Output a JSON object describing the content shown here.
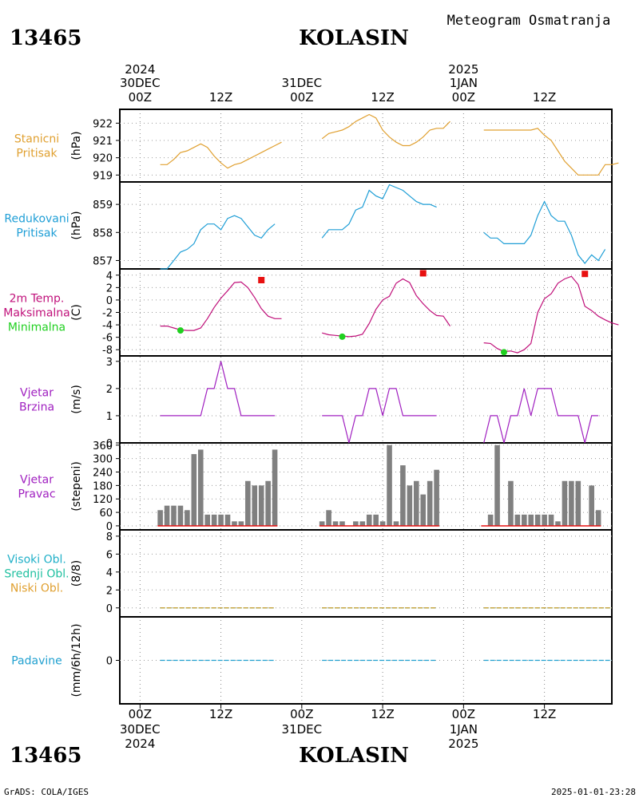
{
  "header": {
    "station_id": "13465",
    "station_name": "KOLASIN",
    "product": "Meteogram Osmatranja"
  },
  "footer": {
    "station_id": "13465",
    "station_name": "KOLASIN",
    "credit": "GrADS: COLA/IGES",
    "timestamp": "2025-01-01-23:28"
  },
  "time_axis": {
    "ticks": [
      {
        "hour": 0,
        "label": "00Z",
        "day": "30DEC",
        "year": "2024"
      },
      {
        "hour": 12,
        "label": "12Z"
      },
      {
        "hour": 24,
        "label": "00Z",
        "day": "31DEC"
      },
      {
        "hour": 36,
        "label": "12Z"
      },
      {
        "hour": 48,
        "label": "00Z",
        "day": "1JAN",
        "year": "2025"
      },
      {
        "hour": 60,
        "label": "12Z"
      }
    ],
    "range_hours": [
      -3,
      70
    ]
  },
  "colors": {
    "station_pressure": "#e0a030",
    "reduced_pressure": "#1e9ed6",
    "temperature": "#c0107a",
    "max_temp": "#e81010",
    "min_temp": "#20d020",
    "wind": "#a020c0",
    "bars": "#808080",
    "high_cloud": "#20b0c8",
    "mid_cloud": "#20c0a0",
    "low_cloud": "#e0a030",
    "precip": "#20a0d0"
  },
  "chart_data": [
    {
      "type": "line",
      "panel": "station_pressure",
      "label_lines": [
        "Stanicni",
        "Pritisak"
      ],
      "ylabel": "(hPa)",
      "ylim": [
        918.6,
        922.8
      ],
      "yticks": [
        919,
        920,
        921,
        922
      ],
      "series": [
        {
          "segments": [
            {
              "x0": 3,
              "values": [
                919.6,
                919.6,
                919.9,
                920.3,
                920.4,
                920.6,
                920.8,
                920.6,
                920.1,
                919.7,
                919.4,
                919.6,
                919.7,
                919.9,
                920.1,
                920.3,
                920.5,
                920.7,
                920.9
              ]
            },
            {
              "x0": 27,
              "values": [
                921.1,
                921.4,
                921.5,
                921.6,
                921.8,
                922.1,
                922.3,
                922.5,
                922.3,
                921.6,
                921.2,
                920.9,
                920.7,
                920.7,
                920.9,
                921.2,
                921.6,
                921.7,
                921.7,
                922.1
              ]
            },
            {
              "x0": 51,
              "values": [
                921.6,
                921.6,
                921.6,
                921.6,
                921.6,
                921.6,
                921.6,
                921.6,
                921.7,
                921.3,
                921.0,
                920.4,
                919.8,
                919.4,
                919.0,
                919.0,
                919.0,
                919.0,
                919.6,
                919.6,
                919.7
              ]
            }
          ]
        }
      ]
    },
    {
      "type": "line",
      "panel": "reduced_pressure",
      "label_lines": [
        "Redukovani",
        "Pritisak"
      ],
      "ylabel": "(hPa)",
      "ylim": [
        856.7,
        859.8
      ],
      "yticks": [
        857,
        858,
        859
      ],
      "series": [
        {
          "segments": [
            {
              "x0": 3,
              "values": [
                856.7,
                856.7,
                857.0,
                857.3,
                857.4,
                857.6,
                858.1,
                858.3,
                858.3,
                858.1,
                858.5,
                858.6,
                858.5,
                858.2,
                857.9,
                857.8,
                858.1,
                858.3
              ]
            },
            {
              "x0": 27,
              "values": [
                857.8,
                858.1,
                858.1,
                858.1,
                858.3,
                858.8,
                858.9,
                859.5,
                859.3,
                859.2,
                859.7,
                859.6,
                859.5,
                859.3,
                859.1,
                859.0,
                859.0,
                858.9
              ]
            },
            {
              "x0": 51,
              "values": [
                858.0,
                857.8,
                857.8,
                857.6,
                857.6,
                857.6,
                857.6,
                857.9,
                858.6,
                859.1,
                858.6,
                858.4,
                858.4,
                857.9,
                857.2,
                856.9,
                857.2,
                857.0,
                857.4
              ]
            }
          ]
        }
      ]
    },
    {
      "type": "line",
      "panel": "temperature",
      "label_lines": [
        "2m Temp.",
        "Maksimalna",
        "Minimalna"
      ],
      "ylabel": "(C)",
      "ylim": [
        -9,
        5
      ],
      "yticks": [
        -8,
        -6,
        -4,
        -2,
        0,
        2,
        4
      ],
      "series": [
        {
          "segments": [
            {
              "x0": 3,
              "values": [
                -4.2,
                -4.2,
                -4.5,
                -4.8,
                -4.9,
                -4.9,
                -4.5,
                -3.0,
                -1.2,
                0.3,
                1.5,
                2.8,
                2.9,
                2.0,
                0.4,
                -1.4,
                -2.6,
                -3.0,
                -3.0
              ]
            },
            {
              "x0": 27,
              "values": [
                -5.3,
                -5.6,
                -5.7,
                -5.8,
                -5.9,
                -5.8,
                -5.5,
                -3.8,
                -1.5,
                0.0,
                0.6,
                2.7,
                3.4,
                2.8,
                0.7,
                -0.6,
                -1.7,
                -2.5,
                -2.6,
                -4.2
              ]
            },
            {
              "x0": 51,
              "values": [
                -6.9,
                -7.0,
                -7.8,
                -8.3,
                -8.2,
                -8.5,
                -8.0,
                -7.0,
                -2.0,
                0.2,
                1.0,
                2.7,
                3.4,
                3.8,
                2.5,
                -1.0,
                -1.7,
                -2.6,
                -3.2,
                -3.7,
                -4.0
              ]
            }
          ]
        },
        {
          "name": "Maksimalna",
          "marker": "square",
          "points": [
            [
              18,
              3.2
            ],
            [
              42,
              4.3
            ],
            [
              66,
              4.2
            ]
          ]
        },
        {
          "name": "Minimalna",
          "marker": "circle",
          "points": [
            [
              6,
              -4.9
            ],
            [
              30,
              -5.9
            ],
            [
              54,
              -8.4
            ]
          ]
        }
      ]
    },
    {
      "type": "line",
      "panel": "wind_speed",
      "label_lines": [
        "Vjetar",
        "Brzina"
      ],
      "ylabel": "(m/s)",
      "ylim": [
        0,
        3.2
      ],
      "yticks": [
        0,
        1,
        2,
        3
      ],
      "series": [
        {
          "segments": [
            {
              "x0": 3,
              "values": [
                1,
                1,
                1,
                1,
                1,
                1,
                1,
                2,
                2,
                3,
                2,
                2,
                1,
                1,
                1,
                1,
                1,
                1
              ]
            },
            {
              "x0": 27,
              "values": [
                1,
                1,
                1,
                1,
                0,
                1,
                1,
                2,
                2,
                1,
                2,
                2,
                1,
                1,
                1,
                1,
                1,
                1
              ]
            },
            {
              "x0": 51,
              "values": [
                0,
                1,
                1,
                0,
                1,
                1,
                2,
                1,
                2,
                2,
                2,
                1,
                1,
                1,
                1,
                0,
                1,
                1
              ]
            }
          ]
        }
      ]
    },
    {
      "type": "bar",
      "panel": "wind_direction",
      "label_lines": [
        "Vjetar",
        "Pravac"
      ],
      "ylabel": "(stepeni)",
      "ylim": [
        -18,
        370
      ],
      "yticks": [
        0,
        60,
        120,
        180,
        240,
        300,
        360
      ],
      "series": [
        {
          "segments": [
            {
              "x0": 3,
              "values": [
                70,
                90,
                90,
                90,
                70,
                320,
                340,
                50,
                50,
                50,
                50,
                20,
                20,
                200,
                180,
                180,
                200,
                340
              ]
            },
            {
              "x0": 27,
              "values": [
                20,
                70,
                20,
                20,
                0,
                20,
                20,
                50,
                50,
                20,
                360,
                20,
                270,
                180,
                200,
                140,
                200,
                250
              ]
            },
            {
              "x0": 51,
              "values": [
                0,
                50,
                360,
                0,
                200,
                50,
                50,
                50,
                50,
                50,
                50,
                20,
                200,
                200,
                200,
                0,
                180,
                70
              ]
            }
          ]
        }
      ]
    },
    {
      "type": "line",
      "panel": "clouds",
      "label_lines": [
        "Visoki Obl.",
        "Srednji Obl.",
        "Niski Obl."
      ],
      "ylabel": "(8/8)",
      "ylim": [
        -1,
        8.7
      ],
      "yticks": [
        0,
        2,
        4,
        6,
        8
      ],
      "series": [
        {
          "name": "Visoki Obl.",
          "constant": 0
        },
        {
          "name": "Srednji Obl.",
          "constant": 0
        },
        {
          "name": "Niski Obl.",
          "constant": 0
        }
      ],
      "spans": [
        [
          3,
          20
        ],
        [
          27,
          44
        ],
        [
          51,
          70
        ]
      ]
    },
    {
      "type": "line",
      "panel": "precipitation",
      "label_lines": [
        "Padavine"
      ],
      "ylabel": "(mm/6h/12h)",
      "ylim": [
        -1,
        1
      ],
      "yticks": [
        0
      ],
      "series": [
        {
          "name": "Padavine",
          "constant": 0
        }
      ],
      "spans": [
        [
          3,
          20
        ],
        [
          27,
          44
        ],
        [
          51,
          70
        ]
      ]
    }
  ]
}
